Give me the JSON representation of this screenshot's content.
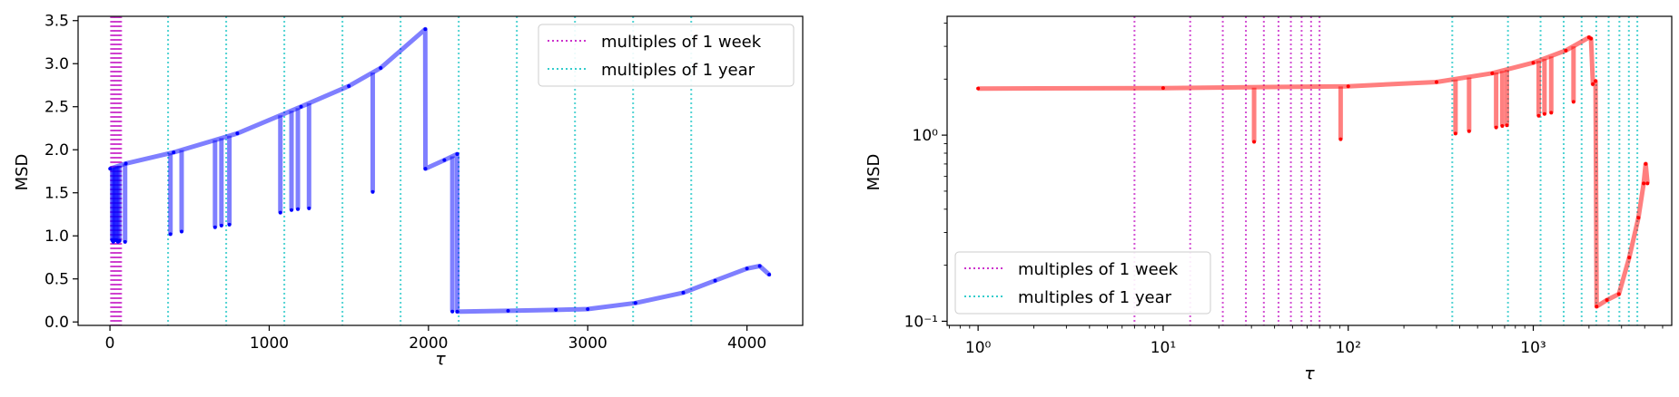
{
  "chart_data": [
    {
      "type": "line",
      "xlabel": "τ",
      "ylabel": "MSD",
      "xlim": [
        -200,
        4350
      ],
      "ylim": [
        -0.04,
        3.55
      ],
      "xscale": "linear",
      "yscale": "linear",
      "x_ticks": [
        0,
        1000,
        2000,
        3000,
        4000
      ],
      "x_tick_labels": [
        "0",
        "1000",
        "2000",
        "3000",
        "4000"
      ],
      "y_ticks": [
        0.0,
        0.5,
        1.0,
        1.5,
        2.0,
        2.5,
        3.0,
        3.5
      ],
      "y_tick_labels": [
        "0.0",
        "0.5",
        "1.0",
        "1.5",
        "2.0",
        "2.5",
        "3.0",
        "3.5"
      ],
      "grid": false,
      "legend": {
        "placement": "upper-right",
        "entries": [
          {
            "label": "multiples of 1 week",
            "color": "#cc33cc",
            "style": "dotted"
          },
          {
            "label": "multiples of 1 year",
            "color": "#33cccc",
            "style": "dotted"
          }
        ]
      },
      "week_lines": [
        7,
        14,
        21,
        28,
        35,
        42,
        49,
        56,
        63,
        70
      ],
      "year_lines": [
        365,
        730,
        1095,
        1460,
        1825,
        2190,
        2555,
        2920,
        3285,
        3650
      ],
      "series": [
        {
          "color": "#0000ff",
          "baseline": [
            [
              1,
              1.78
            ],
            [
              100,
              1.84
            ],
            [
              400,
              1.97
            ],
            [
              800,
              2.19
            ],
            [
              1200,
              2.5
            ],
            [
              1500,
              2.74
            ],
            [
              1700,
              2.95
            ],
            [
              1980,
              3.4
            ],
            [
              1981,
              1.78
            ],
            [
              2100,
              1.88
            ],
            [
              2180,
              1.95
            ],
            [
              2181,
              0.12
            ],
            [
              2500,
              0.13
            ],
            [
              2800,
              0.14
            ],
            [
              3000,
              0.15
            ],
            [
              3300,
              0.22
            ],
            [
              3600,
              0.34
            ],
            [
              3800,
              0.48
            ],
            [
              4000,
              0.62
            ],
            [
              4080,
              0.65
            ],
            [
              4140,
              0.55
            ]
          ],
          "dips": [
            [
              14,
              0.95
            ],
            [
              21,
              0.93
            ],
            [
              30,
              0.95
            ],
            [
              40,
              0.95
            ],
            [
              50,
              0.93
            ],
            [
              60,
              0.94
            ],
            [
              95,
              0.93
            ],
            [
              380,
              1.02
            ],
            [
              450,
              1.05
            ],
            [
              660,
              1.1
            ],
            [
              700,
              1.12
            ],
            [
              750,
              1.13
            ],
            [
              1070,
              1.27
            ],
            [
              1140,
              1.3
            ],
            [
              1180,
              1.31
            ],
            [
              1250,
              1.32
            ],
            [
              1650,
              1.51
            ],
            [
              2150,
              0.12
            ]
          ]
        }
      ]
    },
    {
      "type": "line",
      "xlabel": "τ",
      "ylabel": "MSD",
      "xlim": [
        0.68,
        5600
      ],
      "ylim": [
        0.095,
        4.35
      ],
      "xscale": "log",
      "yscale": "log",
      "x_ticks": [
        1,
        10,
        100,
        1000
      ],
      "x_tick_labels": [
        "10⁰",
        "10¹",
        "10²",
        "10³"
      ],
      "y_ticks": [
        0.1,
        1
      ],
      "y_tick_labels": [
        "10⁻¹",
        "10⁰"
      ],
      "grid": false,
      "legend": {
        "placement": "lower-left",
        "entries": [
          {
            "label": "multiples of 1 week",
            "color": "#cc33cc",
            "style": "dotted"
          },
          {
            "label": "multiples of 1 year",
            "color": "#33cccc",
            "style": "dotted"
          }
        ]
      },
      "week_lines": [
        7,
        14,
        21,
        28,
        35,
        42,
        49,
        56,
        63,
        70
      ],
      "year_lines": [
        365,
        730,
        1095,
        1460,
        1825,
        2190,
        2555,
        2920,
        3285,
        3650
      ],
      "series": [
        {
          "color": "#ff0000",
          "baseline": [
            [
              1,
              1.78
            ],
            [
              10,
              1.79
            ],
            [
              100,
              1.83
            ],
            [
              300,
              1.93
            ],
            [
              600,
              2.15
            ],
            [
              1000,
              2.45
            ],
            [
              1500,
              2.85
            ],
            [
              2000,
              3.35
            ],
            [
              2050,
              3.3
            ],
            [
              2100,
              1.88
            ],
            [
              2170,
              1.95
            ],
            [
              2200,
              0.12
            ],
            [
              2500,
              0.13
            ],
            [
              2900,
              0.14
            ],
            [
              3300,
              0.22
            ],
            [
              3700,
              0.36
            ],
            [
              3950,
              0.55
            ],
            [
              4050,
              0.7
            ],
            [
              4140,
              0.55
            ]
          ],
          "dips": [
            [
              31,
              0.92
            ],
            [
              91,
              0.95
            ],
            [
              380,
              1.02
            ],
            [
              450,
              1.05
            ],
            [
              630,
              1.1
            ],
            [
              680,
              1.12
            ],
            [
              720,
              1.13
            ],
            [
              1070,
              1.27
            ],
            [
              1150,
              1.3
            ],
            [
              1250,
              1.32
            ],
            [
              1650,
              1.51
            ]
          ]
        }
      ]
    }
  ]
}
